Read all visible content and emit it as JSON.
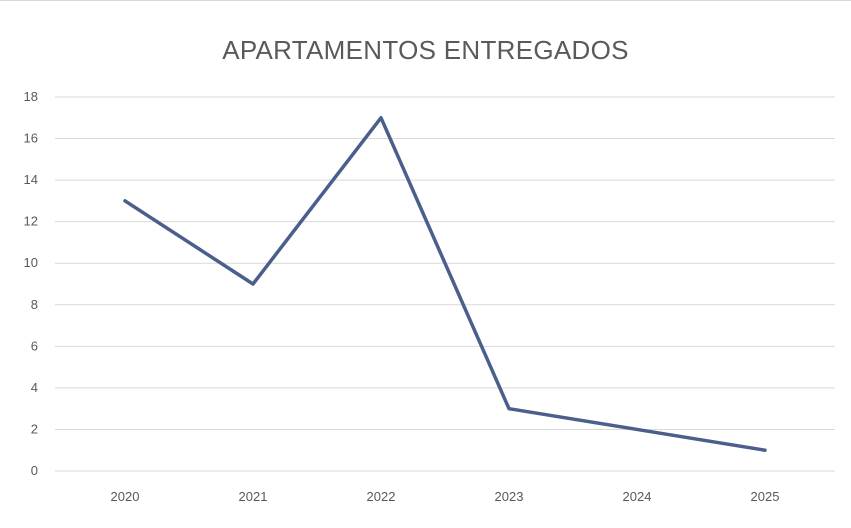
{
  "chart_data": {
    "type": "line",
    "title": "APARTAMENTOS ENTREGADOS",
    "categories": [
      "2020",
      "2021",
      "2022",
      "2023",
      "2024",
      "2025"
    ],
    "series": [
      {
        "values": [
          13,
          9,
          17,
          3,
          2,
          1
        ],
        "color": "#4a5f8c"
      }
    ],
    "ylim": [
      0,
      18
    ],
    "yticks": [
      0,
      2,
      4,
      6,
      8,
      10,
      12,
      14,
      16,
      18
    ],
    "grid": true,
    "legend": "none"
  }
}
